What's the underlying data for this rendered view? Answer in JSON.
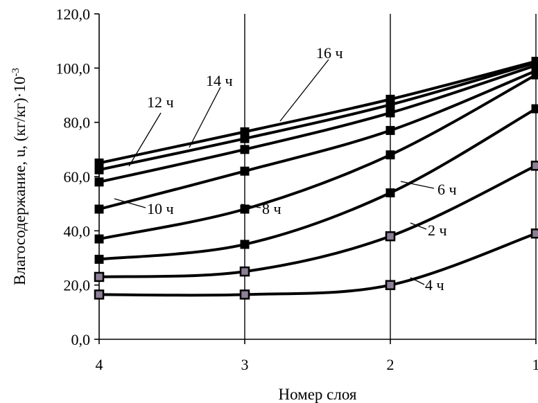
{
  "chart_data": {
    "type": "line",
    "xlabel": "Номер слоя",
    "ylabel": "Влагосодержание, u, (кг/кг)·10",
    "ylabel_exponent": "-3",
    "categories": [
      "4",
      "3",
      "2",
      "1"
    ],
    "ylim": [
      0,
      120
    ],
    "yticks": [
      "0,0",
      "20,0",
      "40,0",
      "60,0",
      "80,0",
      "100,0",
      "120,0"
    ],
    "grid": "vertical",
    "legend": "none",
    "series": [
      {
        "name": "4 ч",
        "values": [
          16.5,
          16.5,
          20,
          39
        ],
        "marker": "square-hollow"
      },
      {
        "name": "2 ч",
        "values": [
          23,
          25,
          38,
          64
        ],
        "marker": "square-hollow"
      },
      {
        "name": "6 ч",
        "values": [
          29.5,
          35,
          54,
          85
        ],
        "marker": "square"
      },
      {
        "name": "8 ч",
        "values": [
          37,
          48,
          68,
          97.5
        ],
        "marker": "square"
      },
      {
        "name": "10 ч",
        "values": [
          48,
          62,
          77,
          99
        ],
        "marker": "square"
      },
      {
        "name": "12 ч",
        "values": [
          58,
          70,
          83.5,
          101
        ],
        "marker": "square"
      },
      {
        "name": "14 ч",
        "values": [
          62.5,
          74,
          86.5,
          102
        ],
        "marker": "square"
      },
      {
        "name": "16 ч",
        "values": [
          65,
          76.5,
          88.5,
          102.5
        ],
        "marker": "square"
      }
    ],
    "colors": {
      "line": "#000000",
      "hollow_marker_fill": "#8c7f96",
      "grid": "#000000"
    }
  }
}
